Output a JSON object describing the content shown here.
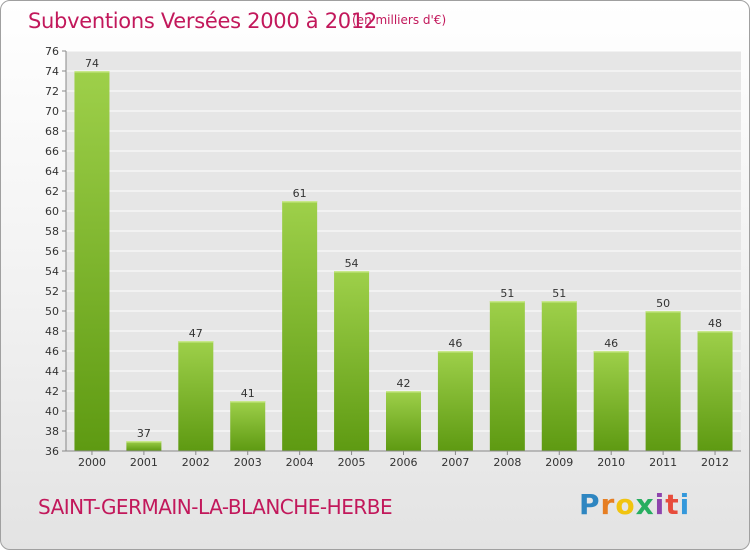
{
  "header": {
    "title": "Subventions Versées 2000 à 2012",
    "subtitle": "(en milliers d'€)"
  },
  "footer": {
    "commune": "SAINT-GERMAIN-LA-BLANCHE-HERBE",
    "logo_text": "Proxiti",
    "logo_colors": [
      "#2e86c1",
      "#e67e22",
      "#f1c40f",
      "#27ae60",
      "#8e44ad",
      "#e74c3c",
      "#3498db"
    ]
  },
  "chart_data": {
    "type": "bar",
    "categories": [
      "2000",
      "2001",
      "2002",
      "2003",
      "2004",
      "2005",
      "2006",
      "2007",
      "2008",
      "2009",
      "2010",
      "2011",
      "2012"
    ],
    "values": [
      74,
      37,
      47,
      41,
      61,
      54,
      42,
      46,
      51,
      51,
      46,
      50,
      48
    ],
    "ylim": [
      36,
      76
    ],
    "yticks": [
      36,
      38,
      40,
      42,
      44,
      46,
      48,
      50,
      52,
      54,
      56,
      58,
      60,
      62,
      64,
      66,
      68,
      70,
      72,
      74,
      76
    ],
    "grid": true,
    "bar_color_top": "#9ed04a",
    "bar_color_bottom": "#5e9a12"
  }
}
